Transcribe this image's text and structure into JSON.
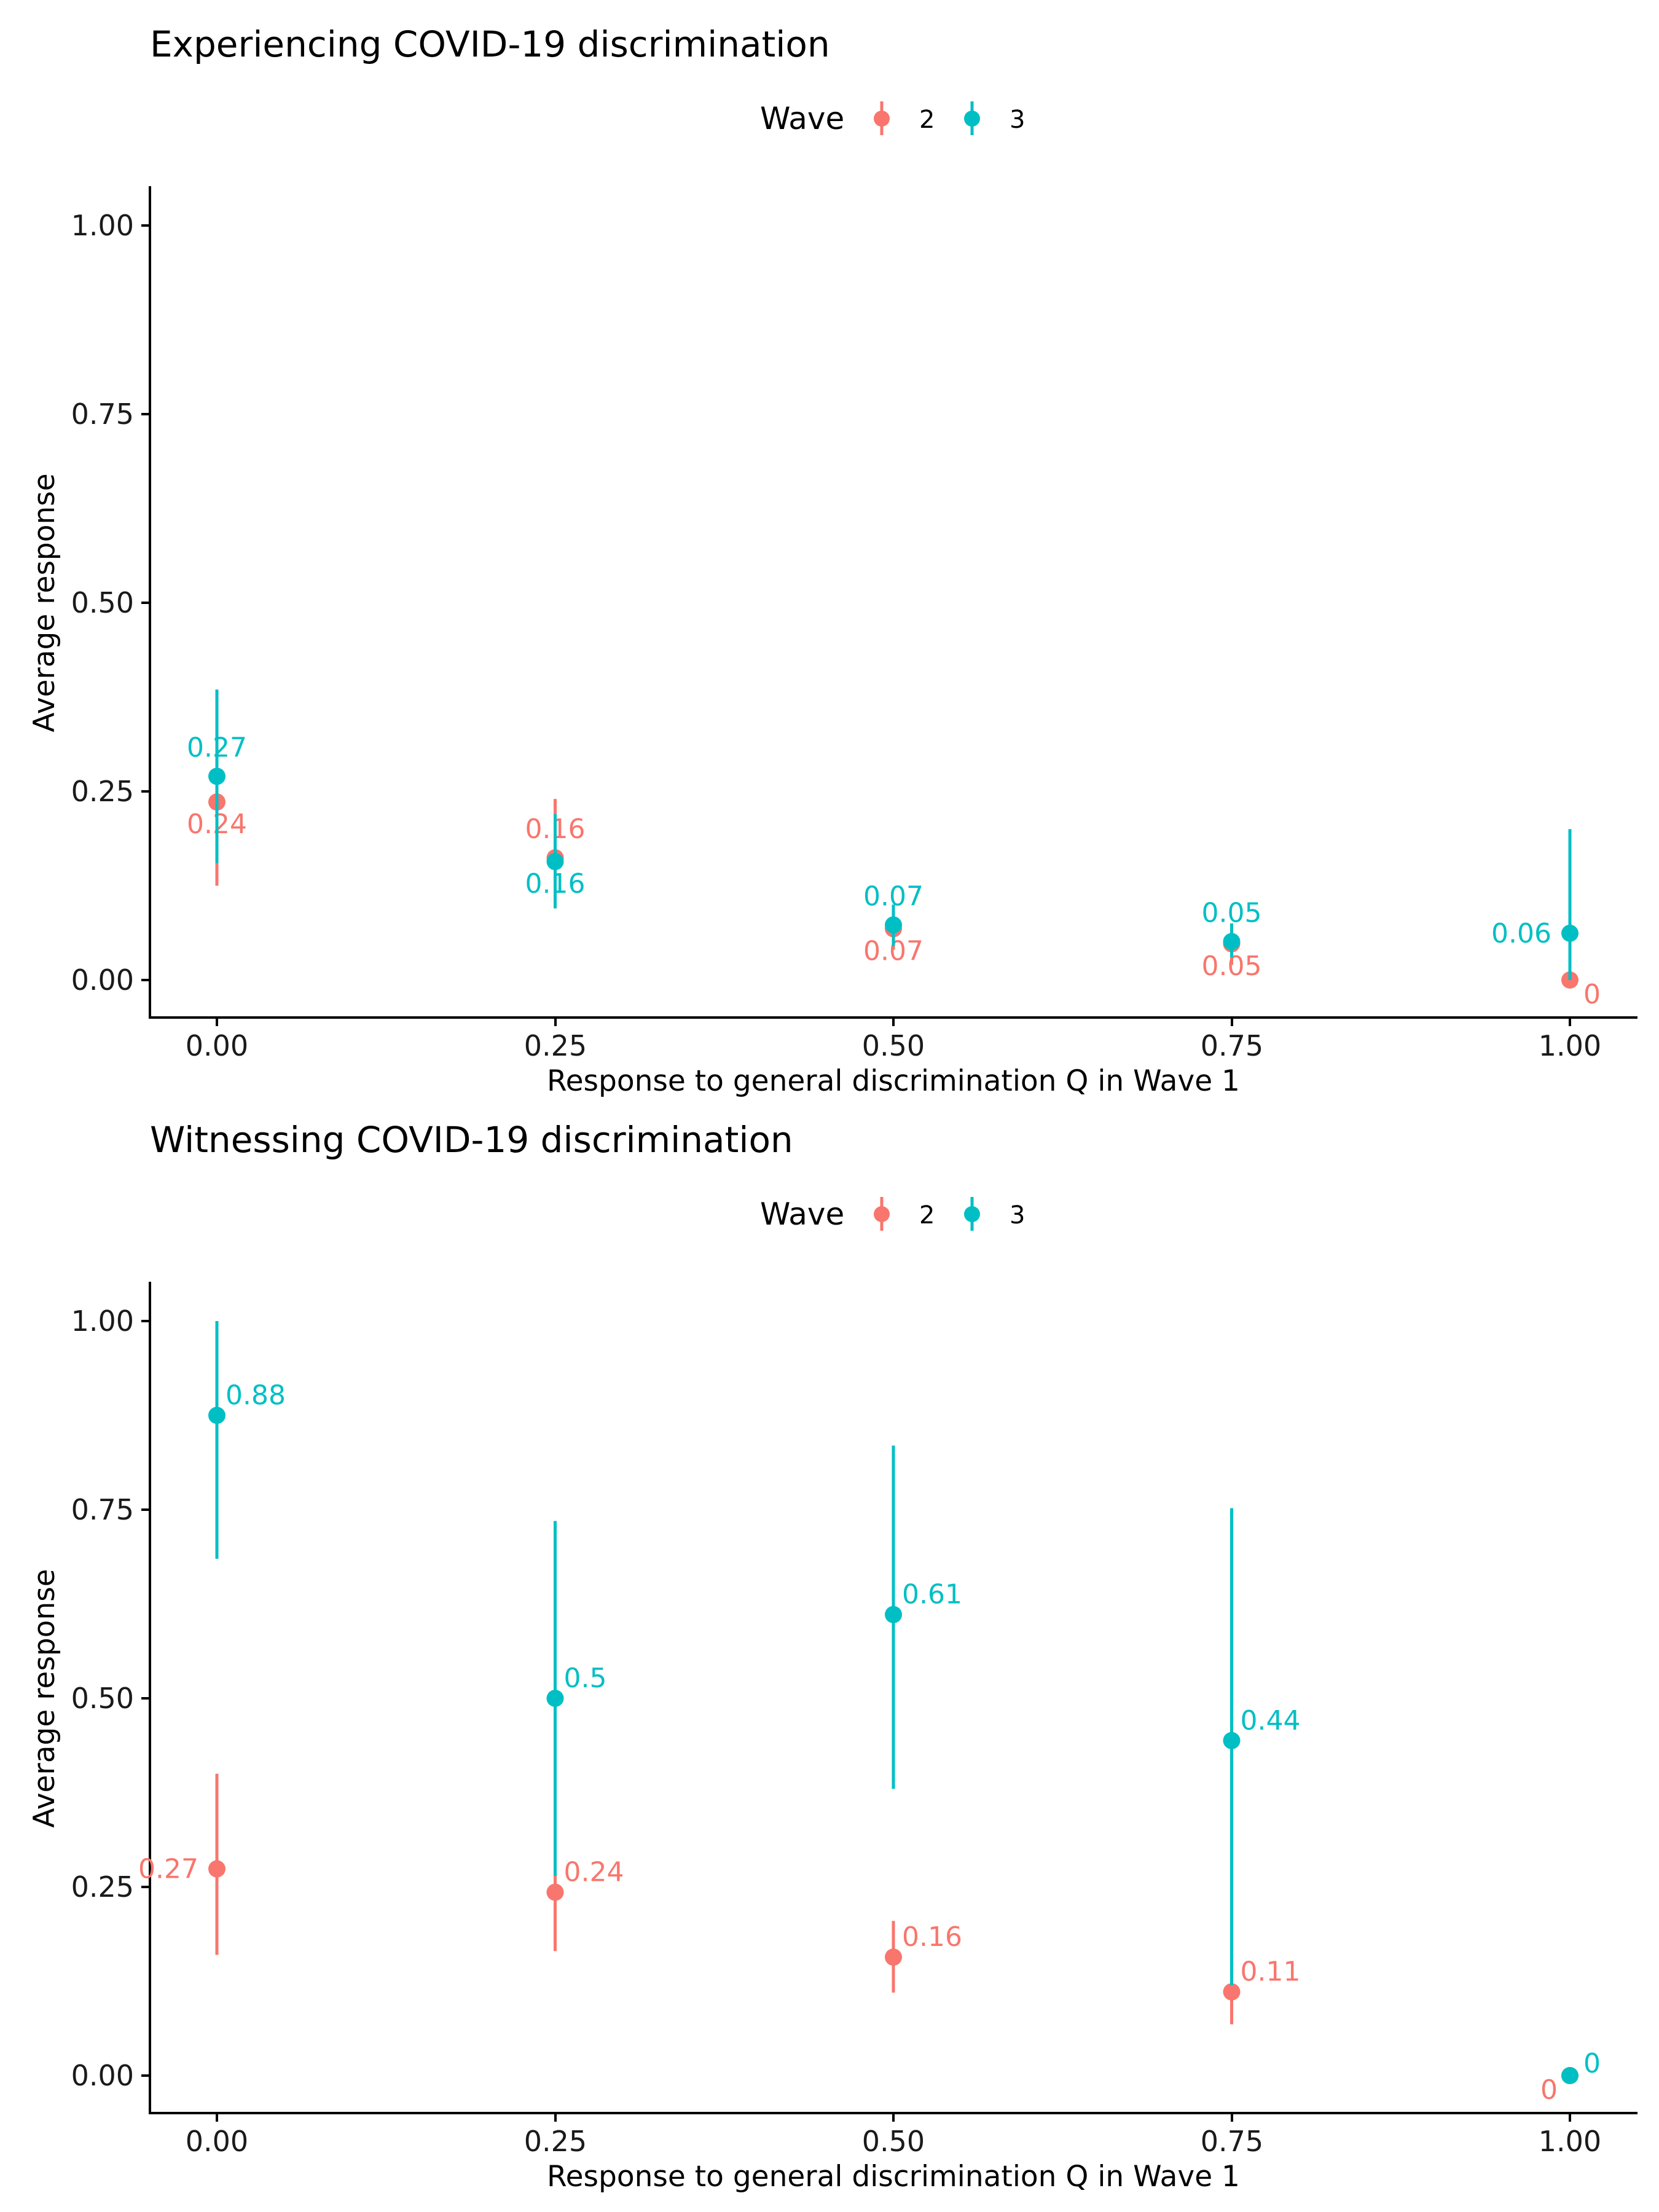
{
  "colors": {
    "wave2": "#F8766D",
    "wave3": "#00BFC4"
  },
  "chart_data": [
    {
      "type": "pointrange",
      "title": "Experiencing COVID-19 discrimination",
      "xlabel": "Response to general discrimination Q in Wave 1",
      "ylabel": "Average response",
      "xlim": [
        -0.05,
        1.05
      ],
      "ylim": [
        -0.05,
        1.05
      ],
      "x_ticks": [
        0,
        0.25,
        0.5,
        0.75,
        1
      ],
      "x_tick_labels": [
        "0.00",
        "0.25",
        "0.50",
        "0.75",
        "1.00"
      ],
      "y_ticks": [
        0,
        0.25,
        0.5,
        0.75,
        1
      ],
      "y_tick_labels": [
        "0.00",
        "0.25",
        "0.50",
        "0.75",
        "1.00"
      ],
      "legend": {
        "title": "Wave",
        "position": "top",
        "entries": [
          "2",
          "3"
        ]
      },
      "series": [
        {
          "name": "2",
          "color": "#F8766D",
          "points": [
            {
              "x": 0.0,
              "y": 0.236,
              "lo": 0.125,
              "hi": 0.345,
              "label": "0.24",
              "label_pos": "below"
            },
            {
              "x": 0.25,
              "y": 0.162,
              "lo": 0.095,
              "hi": 0.24,
              "label": "0.16",
              "label_pos": "above"
            },
            {
              "x": 0.5,
              "y": 0.068,
              "lo": 0.04,
              "hi": 0.095,
              "label": "0.07",
              "label_pos": "below"
            },
            {
              "x": 0.75,
              "y": 0.048,
              "lo": 0.02,
              "hi": 0.075,
              "label": "0.05",
              "label_pos": "below"
            },
            {
              "x": 1.0,
              "y": 0.0,
              "lo": 0.0,
              "hi": 0.0,
              "label": "0",
              "label_pos": "below-right"
            }
          ]
        },
        {
          "name": "3",
          "color": "#00BFC4",
          "points": [
            {
              "x": 0.0,
              "y": 0.27,
              "lo": 0.155,
              "hi": 0.385,
              "label": "0.27",
              "label_pos": "above"
            },
            {
              "x": 0.25,
              "y": 0.157,
              "lo": 0.095,
              "hi": 0.22,
              "label": "0.16",
              "label_pos": "below"
            },
            {
              "x": 0.5,
              "y": 0.073,
              "lo": 0.045,
              "hi": 0.1,
              "label": "0.07",
              "label_pos": "above"
            },
            {
              "x": 0.75,
              "y": 0.051,
              "lo": 0.03,
              "hi": 0.075,
              "label": "0.05",
              "label_pos": "above"
            },
            {
              "x": 1.0,
              "y": 0.062,
              "lo": 0.0,
              "hi": 0.2,
              "label": "0.06",
              "label_pos": "left"
            }
          ]
        }
      ]
    },
    {
      "type": "pointrange",
      "title": "Witnessing COVID-19 discrimination",
      "xlabel": "Response to general discrimination Q in Wave 1",
      "ylabel": "Average response",
      "xlim": [
        -0.05,
        1.05
      ],
      "ylim": [
        -0.05,
        1.05
      ],
      "x_ticks": [
        0,
        0.25,
        0.5,
        0.75,
        1
      ],
      "x_tick_labels": [
        "0.00",
        "0.25",
        "0.50",
        "0.75",
        "1.00"
      ],
      "y_ticks": [
        0,
        0.25,
        0.5,
        0.75,
        1
      ],
      "y_tick_labels": [
        "0.00",
        "0.25",
        "0.50",
        "0.75",
        "1.00"
      ],
      "legend": {
        "title": "Wave",
        "position": "top",
        "entries": [
          "2",
          "3"
        ]
      },
      "series": [
        {
          "name": "2",
          "color": "#F8766D",
          "points": [
            {
              "x": 0.0,
              "y": 0.274,
              "lo": 0.16,
              "hi": 0.4,
              "label": "0.27",
              "label_pos": "left"
            },
            {
              "x": 0.25,
              "y": 0.243,
              "lo": 0.165,
              "hi": 0.32,
              "label": "0.24",
              "label_pos": "right"
            },
            {
              "x": 0.5,
              "y": 0.157,
              "lo": 0.11,
              "hi": 0.205,
              "label": "0.16",
              "label_pos": "right"
            },
            {
              "x": 0.75,
              "y": 0.111,
              "lo": 0.068,
              "hi": 0.155,
              "label": "0.11",
              "label_pos": "right"
            },
            {
              "x": 1.0,
              "y": 0.0,
              "lo": 0.0,
              "hi": 0.0,
              "label": "0",
              "label_pos": "below-left"
            }
          ]
        },
        {
          "name": "3",
          "color": "#00BFC4",
          "points": [
            {
              "x": 0.0,
              "y": 0.875,
              "lo": 0.685,
              "hi": 1.0,
              "label": "0.88",
              "label_pos": "right"
            },
            {
              "x": 0.25,
              "y": 0.5,
              "lo": 0.265,
              "hi": 0.735,
              "label": "0.5",
              "label_pos": "right"
            },
            {
              "x": 0.5,
              "y": 0.611,
              "lo": 0.38,
              "hi": 0.835,
              "label": "0.61",
              "label_pos": "right"
            },
            {
              "x": 0.75,
              "y": 0.444,
              "lo": 0.12,
              "hi": 0.752,
              "label": "0.44",
              "label_pos": "right"
            },
            {
              "x": 1.0,
              "y": 0.0,
              "lo": 0.0,
              "hi": 0.0,
              "label": "0",
              "label_pos": "above-right"
            }
          ]
        }
      ]
    }
  ]
}
